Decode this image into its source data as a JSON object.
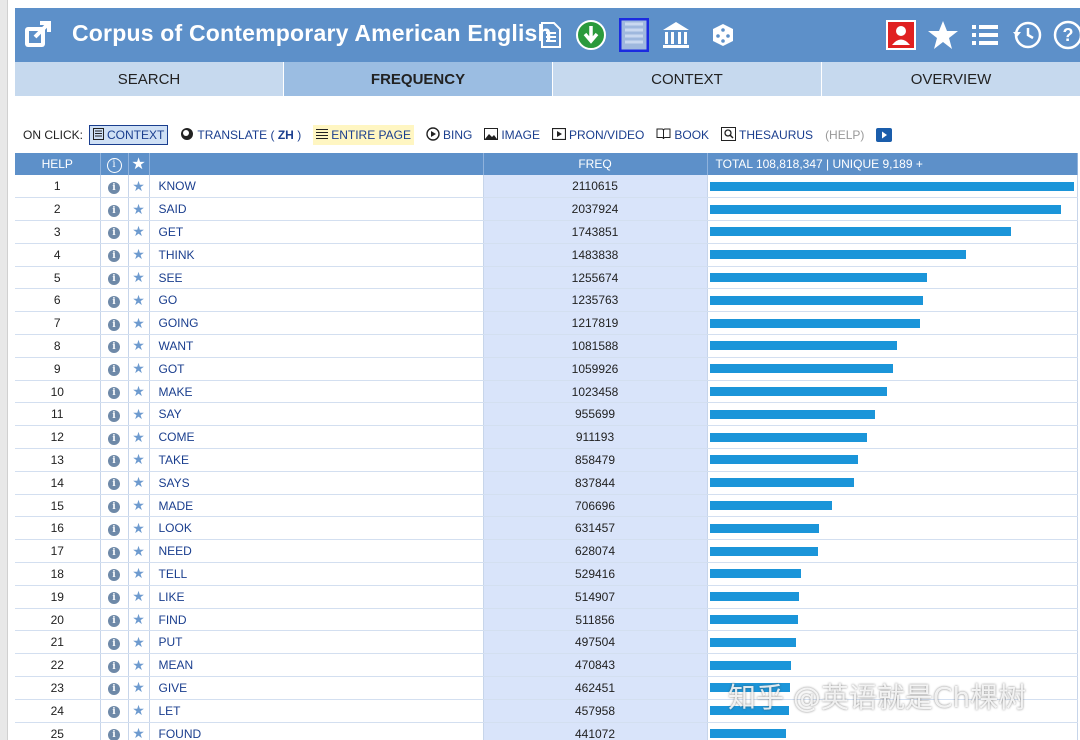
{
  "header": {
    "title": "Corpus of Contemporary American English"
  },
  "tabs": [
    "SEARCH",
    "FREQUENCY",
    "CONTEXT",
    "OVERVIEW"
  ],
  "active_tab": "FREQUENCY",
  "onclick": {
    "label": "ON CLICK:",
    "context": "CONTEXT",
    "translate": "TRANSLATE",
    "translate_lang_open": "(",
    "translate_lang": "ZH",
    "translate_lang_close": ")",
    "entire_page": "ENTIRE PAGE",
    "bing": "BING",
    "image": "IMAGE",
    "pron_video": "PRON/VIDEO",
    "book": "BOOK",
    "thesaurus": "THESAURUS",
    "help": "(HELP)"
  },
  "table": {
    "headers": {
      "help": "HELP",
      "info": "i",
      "star": "★",
      "freq": "FREQ",
      "total": "TOTAL 108,818,347  |  UNIQUE 9,189  +"
    },
    "rows": [
      {
        "rank": "1",
        "word": "KNOW",
        "freq": "2110615"
      },
      {
        "rank": "2",
        "word": "SAID",
        "freq": "2037924"
      },
      {
        "rank": "3",
        "word": "GET",
        "freq": "1743851"
      },
      {
        "rank": "4",
        "word": "THINK",
        "freq": "1483838"
      },
      {
        "rank": "5",
        "word": "SEE",
        "freq": "1255674"
      },
      {
        "rank": "6",
        "word": "GO",
        "freq": "1235763"
      },
      {
        "rank": "7",
        "word": "GOING",
        "freq": "1217819"
      },
      {
        "rank": "8",
        "word": "WANT",
        "freq": "1081588"
      },
      {
        "rank": "9",
        "word": "GOT",
        "freq": "1059926"
      },
      {
        "rank": "10",
        "word": "MAKE",
        "freq": "1023458"
      },
      {
        "rank": "11",
        "word": "SAY",
        "freq": "955699"
      },
      {
        "rank": "12",
        "word": "COME",
        "freq": "911193"
      },
      {
        "rank": "13",
        "word": "TAKE",
        "freq": "858479"
      },
      {
        "rank": "14",
        "word": "SAYS",
        "freq": "837844"
      },
      {
        "rank": "15",
        "word": "MADE",
        "freq": "706696"
      },
      {
        "rank": "16",
        "word": "LOOK",
        "freq": "631457"
      },
      {
        "rank": "17",
        "word": "NEED",
        "freq": "628074"
      },
      {
        "rank": "18",
        "word": "TELL",
        "freq": "529416"
      },
      {
        "rank": "19",
        "word": "LIKE",
        "freq": "514907"
      },
      {
        "rank": "20",
        "word": "FIND",
        "freq": "511856"
      },
      {
        "rank": "21",
        "word": "PUT",
        "freq": "497504"
      },
      {
        "rank": "22",
        "word": "MEAN",
        "freq": "470843"
      },
      {
        "rank": "23",
        "word": "GIVE",
        "freq": "462451"
      },
      {
        "rank": "24",
        "word": "LET",
        "freq": "457958"
      },
      {
        "rank": "25",
        "word": "FOUND",
        "freq": "441072"
      }
    ]
  },
  "watermark": "知乎 @英语就是Ch棵树",
  "colors": {
    "header_bg": "#5d90c9",
    "tab_bg": "#c6d9ee",
    "tab_active_bg": "#9bbde2",
    "bar": "#1b95d9",
    "freq_col_bg": "#d9e4fa",
    "link": "#1a3e8e"
  }
}
